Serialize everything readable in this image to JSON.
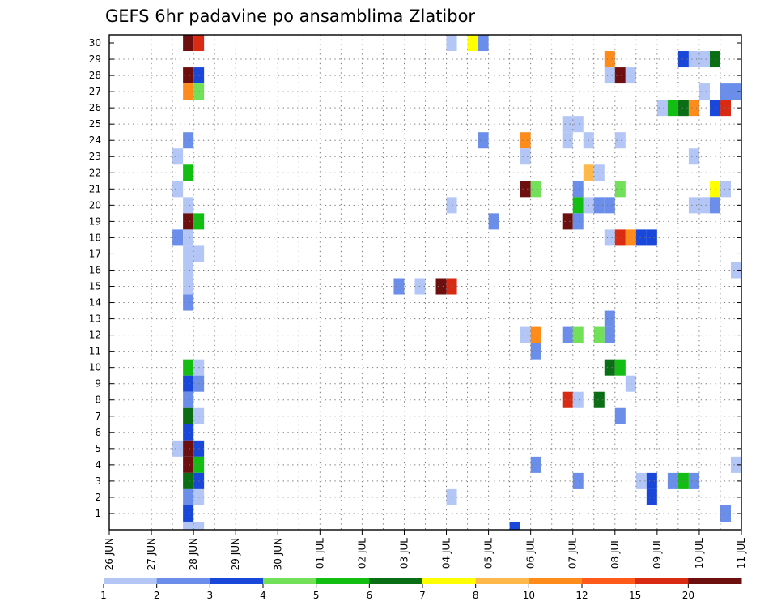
{
  "chart_data": {
    "type": "heatmap",
    "title": "GEFS 6hr padavine po ansamblima Zlatibor",
    "xlabel": "",
    "ylabel": "",
    "x_start": "26 JUN",
    "x_end": "11 JUL",
    "x_step_hours": 6,
    "x_tick_labels": [
      "26 JUN",
      "27 JUN",
      "28 JUN",
      "29 JUN",
      "30 JUN",
      "01 JUL",
      "02 JUL",
      "03 JUL",
      "04 JUL",
      "05 JUL",
      "06 JUL",
      "07 JUL",
      "08 JUL",
      "09 JUL",
      "10 JUL",
      "11 JUL"
    ],
    "y_tick_labels": [
      "1",
      "2",
      "3",
      "4",
      "5",
      "6",
      "7",
      "8",
      "9",
      "10",
      "11",
      "12",
      "13",
      "14",
      "15",
      "16",
      "17",
      "18",
      "19",
      "20",
      "21",
      "22",
      "23",
      "24",
      "25",
      "26",
      "27",
      "28",
      "29",
      "30"
    ],
    "ylim": [
      0,
      30
    ],
    "grid": true,
    "legend": {
      "placement": "bottom",
      "levels": [
        "1",
        "2",
        "3",
        "4",
        "5",
        "6",
        "7",
        "8",
        "10",
        "12",
        "15",
        "20"
      ],
      "colors": [
        "#b3c6f5",
        "#6a8eea",
        "#1947d9",
        "#73e05a",
        "#13be13",
        "#0a6e14",
        "#ffff00",
        "#ffb84a",
        "#ff8c1a",
        "#ff5a1a",
        "#d92a14",
        "#6e0f0f"
      ]
    },
    "cells": [
      {
        "time": "27 JUN 18:00",
        "member": 30,
        "color": "#6e0f0f"
      },
      {
        "time": "28 JUN 00:00",
        "member": 30,
        "color": "#d92a14"
      },
      {
        "time": "27 JUN 18:00",
        "member": 28,
        "color": "#6e0f0f"
      },
      {
        "time": "28 JUN 00:00",
        "member": 28,
        "color": "#1947d9"
      },
      {
        "time": "27 JUN 18:00",
        "member": 27,
        "color": "#ff8c1a"
      },
      {
        "time": "28 JUN 00:00",
        "member": 27,
        "color": "#73e05a"
      },
      {
        "time": "27 JUN 18:00",
        "member": 24,
        "color": "#6a8eea"
      },
      {
        "time": "27 JUN 12:00",
        "member": 23,
        "color": "#b3c6f5"
      },
      {
        "time": "27 JUN 18:00",
        "member": 22,
        "color": "#13be13"
      },
      {
        "time": "27 JUN 12:00",
        "member": 21,
        "color": "#b3c6f5"
      },
      {
        "time": "27 JUN 18:00",
        "member": 20,
        "color": "#b3c6f5"
      },
      {
        "time": "27 JUN 18:00",
        "member": 19,
        "color": "#6e0f0f"
      },
      {
        "time": "28 JUN 00:00",
        "member": 19,
        "color": "#13be13"
      },
      {
        "time": "27 JUN 12:00",
        "member": 18,
        "color": "#6a8eea"
      },
      {
        "time": "27 JUN 18:00",
        "member": 18,
        "color": "#b3c6f5"
      },
      {
        "time": "27 JUN 18:00",
        "member": 17,
        "color": "#b3c6f5"
      },
      {
        "time": "28 JUN 00:00",
        "member": 17,
        "color": "#b3c6f5"
      },
      {
        "time": "27 JUN 18:00",
        "member": 16,
        "color": "#b3c6f5"
      },
      {
        "time": "27 JUN 18:00",
        "member": 15,
        "color": "#b3c6f5"
      },
      {
        "time": "27 JUN 18:00",
        "member": 14,
        "color": "#6a8eea"
      },
      {
        "time": "27 JUN 18:00",
        "member": 10,
        "color": "#13be13"
      },
      {
        "time": "28 JUN 00:00",
        "member": 10,
        "color": "#b3c6f5"
      },
      {
        "time": "27 JUN 18:00",
        "member": 9,
        "color": "#1947d9"
      },
      {
        "time": "28 JUN 00:00",
        "member": 9,
        "color": "#6a8eea"
      },
      {
        "time": "27 JUN 18:00",
        "member": 8,
        "color": "#6a8eea"
      },
      {
        "time": "27 JUN 18:00",
        "member": 7,
        "color": "#0a6e14"
      },
      {
        "time": "28 JUN 00:00",
        "member": 7,
        "color": "#b3c6f5"
      },
      {
        "time": "27 JUN 18:00",
        "member": 6,
        "color": "#1947d9"
      },
      {
        "time": "27 JUN 12:00",
        "member": 5,
        "color": "#b3c6f5"
      },
      {
        "time": "27 JUN 18:00",
        "member": 5,
        "color": "#6e0f0f"
      },
      {
        "time": "28 JUN 00:00",
        "member": 5,
        "color": "#1947d9"
      },
      {
        "time": "27 JUN 18:00",
        "member": 4,
        "color": "#6e0f0f"
      },
      {
        "time": "28 JUN 00:00",
        "member": 4,
        "color": "#13be13"
      },
      {
        "time": "27 JUN 18:00",
        "member": 3,
        "color": "#0a6e14"
      },
      {
        "time": "28 JUN 00:00",
        "member": 3,
        "color": "#1947d9"
      },
      {
        "time": "27 JUN 18:00",
        "member": 2,
        "color": "#6a8eea"
      },
      {
        "time": "28 JUN 00:00",
        "member": 2,
        "color": "#b3c6f5"
      },
      {
        "time": "27 JUN 18:00",
        "member": 1,
        "color": "#1947d9"
      },
      {
        "time": "27 JUN 18:00",
        "member": 0,
        "color": "#b3c6f5"
      },
      {
        "time": "28 JUN 00:00",
        "member": 0,
        "color": "#b3c6f5"
      },
      {
        "time": "02 JUL 18:00",
        "member": 15,
        "color": "#6a8eea"
      },
      {
        "time": "03 JUL 06:00",
        "member": 15,
        "color": "#b3c6f5"
      },
      {
        "time": "03 JUL 18:00",
        "member": 15,
        "color": "#6e0f0f"
      },
      {
        "time": "04 JUL 00:00",
        "member": 15,
        "color": "#d92a14"
      },
      {
        "time": "04 JUL 00:00",
        "member": 30,
        "color": "#b3c6f5"
      },
      {
        "time": "04 JUL 12:00",
        "member": 30,
        "color": "#ffff00"
      },
      {
        "time": "04 JUL 18:00",
        "member": 30,
        "color": "#6a8eea"
      },
      {
        "time": "04 JUL 18:00",
        "member": 24,
        "color": "#6a8eea"
      },
      {
        "time": "04 JUL 00:00",
        "member": 20,
        "color": "#b3c6f5"
      },
      {
        "time": "05 JUL 00:00",
        "member": 19,
        "color": "#6a8eea"
      },
      {
        "time": "04 JUL 00:00",
        "member": 2,
        "color": "#b3c6f5"
      },
      {
        "time": "05 JUL 12:00",
        "member": 0,
        "color": "#1947d9"
      },
      {
        "time": "05 JUL 18:00",
        "member": 24,
        "color": "#ff8c1a"
      },
      {
        "time": "05 JUL 18:00",
        "member": 23,
        "color": "#b3c6f5"
      },
      {
        "time": "05 JUL 18:00",
        "member": 21,
        "color": "#6e0f0f"
      },
      {
        "time": "06 JUL 00:00",
        "member": 21,
        "color": "#73e05a"
      },
      {
        "time": "05 JUL 18:00",
        "member": 12,
        "color": "#b3c6f5"
      },
      {
        "time": "06 JUL 00:00",
        "member": 12,
        "color": "#ff8c1a"
      },
      {
        "time": "06 JUL 00:00",
        "member": 11,
        "color": "#6a8eea"
      },
      {
        "time": "06 JUL 00:00",
        "member": 4,
        "color": "#6a8eea"
      },
      {
        "time": "06 JUL 18:00",
        "member": 25,
        "color": "#b3c6f5"
      },
      {
        "time": "07 JUL 00:00",
        "member": 25,
        "color": "#b3c6f5"
      },
      {
        "time": "06 JUL 18:00",
        "member": 24,
        "color": "#b3c6f5"
      },
      {
        "time": "07 JUL 06:00",
        "member": 24,
        "color": "#b3c6f5"
      },
      {
        "time": "07 JUL 06:00",
        "member": 22,
        "color": "#ffb84a"
      },
      {
        "time": "07 JUL 12:00",
        "member": 22,
        "color": "#b3c6f5"
      },
      {
        "time": "07 JUL 00:00",
        "member": 21,
        "color": "#6a8eea"
      },
      {
        "time": "07 JUL 00:00",
        "member": 20,
        "color": "#13be13"
      },
      {
        "time": "07 JUL 06:00",
        "member": 20,
        "color": "#b3c6f5"
      },
      {
        "time": "07 JUL 12:00",
        "member": 20,
        "color": "#6a8eea"
      },
      {
        "time": "07 JUL 18:00",
        "member": 20,
        "color": "#6a8eea"
      },
      {
        "time": "06 JUL 18:00",
        "member": 19,
        "color": "#6e0f0f"
      },
      {
        "time": "07 JUL 00:00",
        "member": 19,
        "color": "#6a8eea"
      },
      {
        "time": "06 JUL 18:00",
        "member": 12,
        "color": "#6a8eea"
      },
      {
        "time": "07 JUL 00:00",
        "member": 12,
        "color": "#73e05a"
      },
      {
        "time": "07 JUL 12:00",
        "member": 12,
        "color": "#73e05a"
      },
      {
        "time": "07 JUL 18:00",
        "member": 12,
        "color": "#6a8eea"
      },
      {
        "time": "07 JUL 18:00",
        "member": 13,
        "color": "#6a8eea"
      },
      {
        "time": "07 JUL 18:00",
        "member": 10,
        "color": "#0a6e14"
      },
      {
        "time": "08 JUL 00:00",
        "member": 10,
        "color": "#13be13"
      },
      {
        "time": "06 JUL 18:00",
        "member": 8,
        "color": "#d92a14"
      },
      {
        "time": "07 JUL 00:00",
        "member": 8,
        "color": "#b3c6f5"
      },
      {
        "time": "07 JUL 12:00",
        "member": 8,
        "color": "#0a6e14"
      },
      {
        "time": "07 JUL 00:00",
        "member": 3,
        "color": "#6a8eea"
      },
      {
        "time": "07 JUL 18:00",
        "member": 29,
        "color": "#ff8c1a"
      },
      {
        "time": "07 JUL 18:00",
        "member": 28,
        "color": "#b3c6f5"
      },
      {
        "time": "08 JUL 00:00",
        "member": 28,
        "color": "#6e0f0f"
      },
      {
        "time": "08 JUL 06:00",
        "member": 28,
        "color": "#b3c6f5"
      },
      {
        "time": "08 JUL 00:00",
        "member": 24,
        "color": "#b3c6f5"
      },
      {
        "time": "08 JUL 00:00",
        "member": 21,
        "color": "#73e05a"
      },
      {
        "time": "07 JUL 18:00",
        "member": 18,
        "color": "#b3c6f5"
      },
      {
        "time": "08 JUL 00:00",
        "member": 18,
        "color": "#d92a14"
      },
      {
        "time": "08 JUL 06:00",
        "member": 18,
        "color": "#ff8c1a"
      },
      {
        "time": "08 JUL 12:00",
        "member": 18,
        "color": "#1947d9"
      },
      {
        "time": "08 JUL 18:00",
        "member": 18,
        "color": "#1947d9"
      },
      {
        "time": "08 JUL 06:00",
        "member": 9,
        "color": "#b3c6f5"
      },
      {
        "time": "08 JUL 00:00",
        "member": 7,
        "color": "#6a8eea"
      },
      {
        "time": "08 JUL 12:00",
        "member": 3,
        "color": "#b3c6f5"
      },
      {
        "time": "08 JUL 18:00",
        "member": 3,
        "color": "#1947d9"
      },
      {
        "time": "08 JUL 18:00",
        "member": 2,
        "color": "#1947d9"
      },
      {
        "time": "09 JUL 06:00",
        "member": 3,
        "color": "#6a8eea"
      },
      {
        "time": "09 JUL 12:00",
        "member": 3,
        "color": "#13be13"
      },
      {
        "time": "09 JUL 18:00",
        "member": 3,
        "color": "#6a8eea"
      },
      {
        "time": "09 JUL 00:00",
        "member": 26,
        "color": "#b3c6f5"
      },
      {
        "time": "09 JUL 06:00",
        "member": 26,
        "color": "#13be13"
      },
      {
        "time": "09 JUL 12:00",
        "member": 26,
        "color": "#0a6e14"
      },
      {
        "time": "09 JUL 18:00",
        "member": 26,
        "color": "#ff8c1a"
      },
      {
        "time": "10 JUL 06:00",
        "member": 26,
        "color": "#1947d9"
      },
      {
        "time": "10 JUL 12:00",
        "member": 26,
        "color": "#d92a14"
      },
      {
        "time": "09 JUL 12:00",
        "member": 29,
        "color": "#1947d9"
      },
      {
        "time": "09 JUL 18:00",
        "member": 29,
        "color": "#b3c6f5"
      },
      {
        "time": "10 JUL 00:00",
        "member": 29,
        "color": "#b3c6f5"
      },
      {
        "time": "10 JUL 06:00",
        "member": 29,
        "color": "#0a6e14"
      },
      {
        "time": "10 JUL 00:00",
        "member": 27,
        "color": "#b3c6f5"
      },
      {
        "time": "10 JUL 12:00",
        "member": 27,
        "color": "#6a8eea"
      },
      {
        "time": "10 JUL 18:00",
        "member": 27,
        "color": "#6a8eea"
      },
      {
        "time": "09 JUL 18:00",
        "member": 23,
        "color": "#b3c6f5"
      },
      {
        "time": "10 JUL 06:00",
        "member": 21,
        "color": "#ffff00"
      },
      {
        "time": "10 JUL 12:00",
        "member": 21,
        "color": "#b3c6f5"
      },
      {
        "time": "09 JUL 18:00",
        "member": 20,
        "color": "#b3c6f5"
      },
      {
        "time": "10 JUL 00:00",
        "member": 20,
        "color": "#b3c6f5"
      },
      {
        "time": "10 JUL 06:00",
        "member": 20,
        "color": "#6a8eea"
      },
      {
        "time": "10 JUL 18:00",
        "member": 16,
        "color": "#b3c6f5"
      },
      {
        "time": "10 JUL 18:00",
        "member": 4,
        "color": "#b3c6f5"
      },
      {
        "time": "10 JUL 12:00",
        "member": 1,
        "color": "#6a8eea"
      }
    ]
  }
}
